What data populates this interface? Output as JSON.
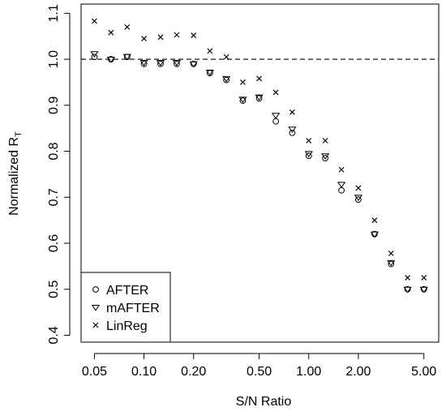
{
  "chart_data": {
    "type": "scatter",
    "title": "",
    "xlabel": "S/N Ratio",
    "ylabel": "Normalized R",
    "ylabel_subscript": "T",
    "xscale": "log",
    "xlim": [
      0.0415,
      6.15
    ],
    "ylim": [
      0.385,
      1.12
    ],
    "xticks": [
      0.05,
      0.1,
      0.2,
      0.5,
      1.0,
      2.0,
      5.0
    ],
    "xtick_labels": [
      "0.05",
      "0.10",
      "0.20",
      "0.50",
      "1.00",
      "2.00",
      "5.00"
    ],
    "yticks": [
      0.4,
      0.5,
      0.6,
      0.7,
      0.8,
      0.9,
      1.0,
      1.1
    ],
    "ytick_labels": [
      "0.4",
      "0.5",
      "0.6",
      "0.7",
      "0.8",
      "0.9",
      "1.0",
      "1.1"
    ],
    "reference_line": {
      "y": 1.0,
      "style": "dashed"
    },
    "grid": false,
    "legend_position": "bottom-left",
    "x": [
      0.05,
      0.063,
      0.079,
      0.1,
      0.126,
      0.158,
      0.2,
      0.251,
      0.316,
      0.398,
      0.5,
      0.631,
      0.794,
      1.0,
      1.26,
      1.58,
      2.0,
      2.51,
      3.16,
      3.98,
      5.0
    ],
    "series": [
      {
        "name": "AFTER",
        "marker": "circle",
        "values": [
          1.005,
          1.0,
          1.005,
          0.99,
          0.99,
          0.99,
          0.99,
          0.97,
          0.955,
          0.91,
          0.915,
          0.865,
          0.84,
          0.79,
          0.785,
          0.715,
          0.695,
          0.62,
          0.555,
          0.5,
          0.5
        ]
      },
      {
        "name": "mAFTER",
        "marker": "triangle-down",
        "values": [
          1.012,
          1.0,
          1.006,
          0.993,
          0.993,
          0.993,
          0.99,
          0.972,
          0.958,
          0.913,
          0.918,
          0.878,
          0.848,
          0.795,
          0.79,
          0.728,
          0.7,
          0.62,
          0.558,
          0.5,
          0.5
        ]
      },
      {
        "name": "LinReg",
        "marker": "x",
        "values": [
          1.083,
          1.058,
          1.07,
          1.045,
          1.048,
          1.053,
          1.052,
          1.018,
          1.005,
          0.95,
          0.958,
          0.928,
          0.885,
          0.823,
          0.823,
          0.76,
          0.72,
          0.65,
          0.578,
          0.525,
          0.525
        ]
      }
    ]
  }
}
